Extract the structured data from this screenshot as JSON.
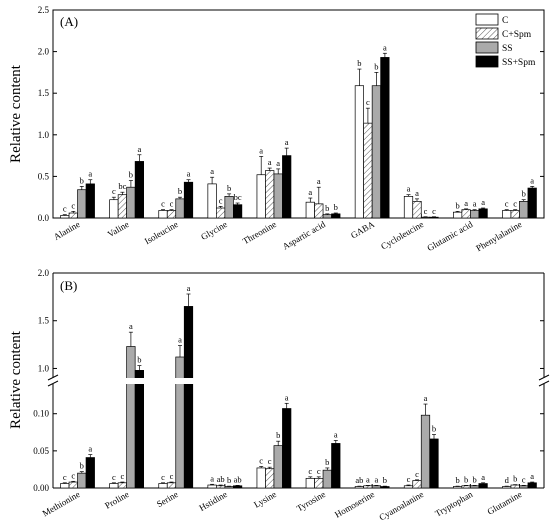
{
  "chart_data": [
    {
      "type": "bar",
      "panel_label": "(A)",
      "ylabel": "Relative content",
      "ylim": [
        0,
        2.5
      ],
      "yticks": [
        "0.0",
        "0.5",
        "1.0",
        "1.5",
        "2.0",
        "2.5"
      ],
      "legend_position": "top-right",
      "categories": [
        "Alanine",
        "Valine",
        "Isoleucine",
        "Glycine",
        "Threonine",
        "Aspartic acid",
        "GABA",
        "Cycloleucine",
        "Glutamic acid",
        "Phenylalanine"
      ],
      "series": [
        {
          "name": "C",
          "pattern": "white",
          "values": [
            0.03,
            0.22,
            0.09,
            0.41,
            0.52,
            0.19,
            1.59,
            0.26,
            0.07,
            0.09
          ],
          "errors": [
            0.01,
            0.03,
            0.01,
            0.08,
            0.22,
            0.05,
            0.2,
            0.02,
            0.01,
            0.01
          ],
          "letters": [
            "c",
            "c",
            "c",
            "a",
            "a",
            "a",
            "b",
            "a",
            "b",
            "c"
          ]
        },
        {
          "name": "C+Spm",
          "pattern": "hatched",
          "values": [
            0.06,
            0.28,
            0.09,
            0.12,
            0.57,
            0.17,
            1.14,
            0.2,
            0.1,
            0.09
          ],
          "errors": [
            0.02,
            0.03,
            0.01,
            0.02,
            0.03,
            0.2,
            0.18,
            0.03,
            0.01,
            0.01
          ],
          "letters": [
            "c",
            "bc",
            "c",
            "c",
            "a",
            "a",
            "c",
            "a",
            "a",
            "c"
          ]
        },
        {
          "name": "SS",
          "pattern": "gray",
          "values": [
            0.34,
            0.37,
            0.23,
            0.26,
            0.53,
            0.04,
            1.59,
            0.01,
            0.09,
            0.2
          ],
          "errors": [
            0.04,
            0.08,
            0.02,
            0.03,
            0.06,
            0.01,
            0.16,
            0.005,
            0.01,
            0.02
          ],
          "letters": [
            "b",
            "b",
            "b",
            "b",
            "a",
            "b",
            "b",
            "c",
            "a",
            "b"
          ]
        },
        {
          "name": "SS+Spm",
          "pattern": "black",
          "values": [
            0.41,
            0.68,
            0.43,
            0.16,
            0.75,
            0.05,
            1.93,
            0.01,
            0.11,
            0.36
          ],
          "errors": [
            0.05,
            0.08,
            0.03,
            0.02,
            0.09,
            0.01,
            0.05,
            0.005,
            0.01,
            0.02
          ],
          "letters": [
            "a",
            "a",
            "a",
            "bc",
            "a",
            "b",
            "a",
            "c",
            "a",
            "a"
          ]
        }
      ]
    },
    {
      "type": "bar",
      "panel_label": "(B)",
      "ylabel": "Relative content",
      "axis_break": true,
      "ylim_lower": [
        0,
        0.14
      ],
      "ylim_upper": [
        0.9,
        2.0
      ],
      "yticks_lower": [
        "0.00",
        "0.05",
        "0.10"
      ],
      "yticks_upper": [
        "1.0",
        "1.5",
        "2.0"
      ],
      "categories": [
        "Methionine",
        "Proline",
        "Serine",
        "Hstidine",
        "Lysine",
        "Tyrosine",
        "Homoserine",
        "Cyanoalanine",
        "Tryptophan",
        "Glutamine"
      ],
      "series": [
        {
          "name": "C",
          "pattern": "white",
          "values": [
            0.006,
            0.006,
            0.006,
            0.004,
            0.027,
            0.013,
            0.002,
            0.003,
            0.002,
            0.002
          ],
          "errors": [
            0.001,
            0.001,
            0.001,
            0.001,
            0.002,
            0.002,
            0.0005,
            0.001,
            0.0005,
            0.0005
          ],
          "letters": [
            "c",
            "c",
            "c",
            "a",
            "c",
            "c",
            "ab",
            "c",
            "b",
            "d"
          ]
        },
        {
          "name": "C+Spm",
          "pattern": "hatched",
          "values": [
            0.008,
            0.007,
            0.007,
            0.003,
            0.026,
            0.013,
            0.003,
            0.01,
            0.003,
            0.004
          ],
          "errors": [
            0.001,
            0.001,
            0.001,
            0.001,
            0.002,
            0.002,
            0.0005,
            0.001,
            0.0005,
            0.0005
          ],
          "letters": [
            "c",
            "c",
            "c",
            "ab",
            "c",
            "c",
            "a",
            "c",
            "b",
            "b"
          ]
        },
        {
          "name": "SS",
          "pattern": "gray",
          "values": [
            0.02,
            1.23,
            1.12,
            0.002,
            0.057,
            0.024,
            0.003,
            0.098,
            0.003,
            0.003
          ],
          "errors": [
            0.002,
            0.15,
            0.12,
            0.0005,
            0.006,
            0.003,
            0.0005,
            0.015,
            0.0005,
            0.0005
          ],
          "letters": [
            "b",
            "a",
            "a",
            "b",
            "b",
            "b",
            "a",
            "a",
            "b",
            "c"
          ]
        },
        {
          "name": "SS+Spm",
          "pattern": "black",
          "values": [
            0.041,
            0.98,
            1.65,
            0.003,
            0.107,
            0.06,
            0.002,
            0.066,
            0.006,
            0.007
          ],
          "errors": [
            0.004,
            0.05,
            0.13,
            0.0005,
            0.007,
            0.004,
            0.0005,
            0.006,
            0.001,
            0.001
          ],
          "letters": [
            "a",
            "b",
            "a",
            "ab",
            "a",
            "a",
            "b",
            "b",
            "a",
            "a"
          ]
        }
      ]
    }
  ]
}
